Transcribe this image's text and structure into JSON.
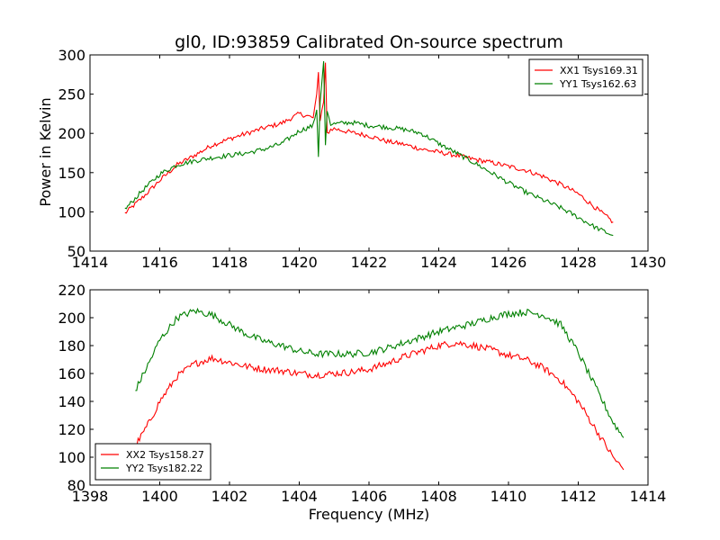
{
  "chart_data": [
    {
      "type": "line",
      "title": "gl0, ID:93859 Calibrated On-source spectrum",
      "xlabel": "",
      "ylabel": "Power in Kelvin",
      "xlim": [
        1414,
        1430
      ],
      "ylim": [
        50,
        300
      ],
      "xticks": [
        1414,
        1416,
        1418,
        1420,
        1422,
        1424,
        1426,
        1428,
        1430
      ],
      "yticks": [
        50,
        100,
        150,
        200,
        250,
        300
      ],
      "grid": false,
      "legend_position": "upper right",
      "series": [
        {
          "name": "XX1 Tsys169.31",
          "color": "#ff0000",
          "x": [
            1415.0,
            1415.5,
            1416.0,
            1416.5,
            1417.0,
            1417.5,
            1418.0,
            1418.5,
            1419.0,
            1419.5,
            1420.0,
            1420.4,
            1420.5,
            1420.55,
            1420.6,
            1420.7,
            1420.75,
            1420.8,
            1420.9,
            1421.0,
            1421.5,
            1422.0,
            1422.5,
            1423.0,
            1423.5,
            1424.0,
            1424.5,
            1425.0,
            1425.5,
            1426.0,
            1426.5,
            1427.0,
            1427.5,
            1428.0,
            1428.5,
            1429.0
          ],
          "y": [
            98,
            118,
            140,
            160,
            172,
            185,
            193,
            200,
            207,
            213,
            225,
            220,
            250,
            278,
            215,
            240,
            290,
            200,
            205,
            206,
            201,
            197,
            190,
            186,
            180,
            176,
            172,
            167,
            163,
            158,
            153,
            145,
            135,
            123,
            105,
            87
          ]
        },
        {
          "name": "YY1 Tsys162.63",
          "color": "#008000",
          "x": [
            1415.0,
            1415.5,
            1416.0,
            1416.5,
            1417.0,
            1417.5,
            1418.0,
            1418.5,
            1419.0,
            1419.5,
            1420.0,
            1420.4,
            1420.5,
            1420.55,
            1420.6,
            1420.7,
            1420.75,
            1420.8,
            1420.9,
            1421.0,
            1421.5,
            1422.0,
            1422.5,
            1423.0,
            1423.5,
            1424.0,
            1424.5,
            1425.0,
            1425.5,
            1426.0,
            1426.5,
            1427.0,
            1427.5,
            1428.0,
            1428.5,
            1429.0
          ],
          "y": [
            103,
            127,
            148,
            160,
            165,
            169,
            172,
            175,
            180,
            187,
            203,
            210,
            230,
            170,
            240,
            292,
            185,
            230,
            212,
            212,
            214,
            210,
            208,
            205,
            200,
            187,
            175,
            163,
            150,
            137,
            125,
            115,
            105,
            93,
            80,
            70
          ]
        }
      ]
    },
    {
      "type": "line",
      "title": "",
      "xlabel": "Frequency (MHz)",
      "ylabel": "",
      "xlim": [
        1398,
        1414
      ],
      "ylim": [
        80,
        220
      ],
      "xticks": [
        1398,
        1400,
        1402,
        1404,
        1406,
        1408,
        1410,
        1412,
        1414
      ],
      "yticks": [
        80,
        100,
        120,
        140,
        160,
        180,
        200,
        220
      ],
      "grid": false,
      "legend_position": "lower left",
      "series": [
        {
          "name": "XX2 Tsys158.27",
          "color": "#ff0000",
          "x": [
            1399.3,
            1399.7,
            1400.0,
            1400.5,
            1401.0,
            1401.5,
            1402.0,
            1402.5,
            1403.0,
            1403.5,
            1404.0,
            1404.5,
            1405.0,
            1405.5,
            1406.0,
            1406.5,
            1407.0,
            1407.5,
            1408.0,
            1408.5,
            1409.0,
            1409.5,
            1410.0,
            1410.5,
            1411.0,
            1411.5,
            1412.0,
            1412.5,
            1413.0,
            1413.3
          ],
          "y": [
            108,
            125,
            140,
            158,
            167,
            171,
            168,
            165,
            163,
            162,
            160,
            159,
            160,
            161,
            163,
            167,
            172,
            176,
            180,
            182,
            180,
            177,
            173,
            170,
            164,
            155,
            140,
            120,
            100,
            91
          ]
        },
        {
          "name": "YY2 Tsys182.22",
          "color": "#008000",
          "x": [
            1399.3,
            1399.7,
            1400.0,
            1400.5,
            1401.0,
            1401.5,
            1402.0,
            1402.5,
            1403.0,
            1403.5,
            1404.0,
            1404.5,
            1405.0,
            1405.5,
            1406.0,
            1406.5,
            1407.0,
            1407.5,
            1408.0,
            1408.5,
            1409.0,
            1409.5,
            1410.0,
            1410.5,
            1411.0,
            1411.5,
            1412.0,
            1412.5,
            1413.0,
            1413.3
          ],
          "y": [
            148,
            168,
            184,
            200,
            205,
            202,
            195,
            188,
            183,
            180,
            176,
            174,
            174,
            174,
            175,
            178,
            182,
            186,
            190,
            193,
            196,
            200,
            203,
            204,
            202,
            195,
            175,
            150,
            125,
            114
          ]
        }
      ]
    }
  ]
}
